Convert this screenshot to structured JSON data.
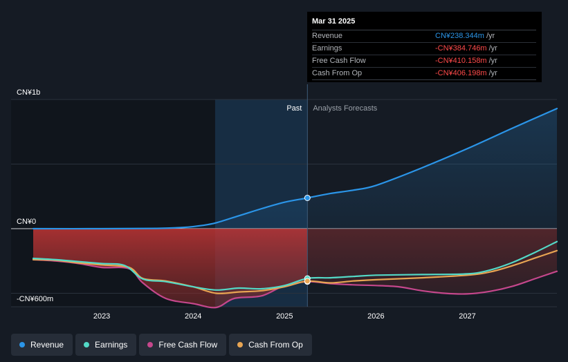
{
  "chart_data": {
    "type": "line",
    "y_labels": [
      {
        "value": 1000,
        "text": "CN¥1b"
      },
      {
        "value": 0,
        "text": "CN¥0"
      },
      {
        "value": -600,
        "text": "-CN¥600m"
      }
    ],
    "ylim": [
      -600,
      1000
    ],
    "xlim": [
      2022.25,
      2027.98
    ],
    "x_ticks": [
      {
        "value": 2023,
        "text": "2023"
      },
      {
        "value": 2024,
        "text": "2024"
      },
      {
        "value": 2025,
        "text": "2025"
      },
      {
        "value": 2026,
        "text": "2026"
      },
      {
        "value": 2027,
        "text": "2027"
      }
    ],
    "divider": {
      "x": 2025.25,
      "past_label": "Past",
      "forecast_label": "Analysts Forecasts"
    },
    "highlight_start": 2024.24,
    "series": [
      {
        "name": "Revenue",
        "color": "#2b95e8",
        "fill": true,
        "x": [
          2022.25,
          2023.0,
          2023.6,
          2023.9,
          2024.1,
          2024.25,
          2024.5,
          2024.75,
          2025.0,
          2025.25,
          2025.5,
          2025.75,
          2026.0,
          2026.5,
          2027.0,
          2027.5,
          2027.98
        ],
        "y": [
          0,
          0,
          2,
          10,
          25,
          45,
          100,
          155,
          205,
          238,
          272,
          298,
          335,
          470,
          620,
          780,
          930
        ]
      },
      {
        "name": "Earnings",
        "color": "#53d9c7",
        "x": [
          2022.25,
          2022.5,
          2022.75,
          2023.0,
          2023.25,
          2023.45,
          2023.7,
          2024.0,
          2024.25,
          2024.5,
          2024.75,
          2025.0,
          2025.25,
          2025.5,
          2025.75,
          2026.0,
          2026.5,
          2027.0,
          2027.25,
          2027.5,
          2027.75,
          2027.98
        ],
        "y": [
          -230,
          -240,
          -255,
          -270,
          -285,
          -390,
          -410,
          -450,
          -475,
          -460,
          -465,
          -440,
          -385,
          -380,
          -370,
          -360,
          -355,
          -350,
          -320,
          -260,
          -180,
          -100
        ]
      },
      {
        "name": "Free Cash Flow",
        "color": "#c5478c",
        "x": [
          2022.25,
          2022.5,
          2022.75,
          2023.0,
          2023.3,
          2023.45,
          2023.7,
          2024.0,
          2024.25,
          2024.45,
          2024.75,
          2025.0,
          2025.25,
          2025.5,
          2025.75,
          2026.0,
          2026.25,
          2026.5,
          2026.75,
          2027.0,
          2027.25,
          2027.5,
          2027.75,
          2027.98
        ],
        "y": [
          -240,
          -250,
          -270,
          -300,
          -310,
          -420,
          -540,
          -580,
          -610,
          -540,
          -520,
          -440,
          -410,
          -425,
          -435,
          -440,
          -450,
          -480,
          -500,
          -505,
          -485,
          -445,
          -385,
          -330
        ]
      },
      {
        "name": "Cash From Op",
        "color": "#e8a553",
        "x": [
          2022.25,
          2022.5,
          2022.75,
          2023.0,
          2023.3,
          2023.45,
          2023.7,
          2024.0,
          2024.25,
          2024.5,
          2024.75,
          2025.0,
          2025.25,
          2025.5,
          2025.75,
          2026.0,
          2026.5,
          2027.0,
          2027.25,
          2027.5,
          2027.75,
          2027.98
        ],
        "y": [
          -240,
          -245,
          -265,
          -280,
          -300,
          -385,
          -405,
          -450,
          -500,
          -490,
          -480,
          -450,
          -406,
          -420,
          -405,
          -395,
          -380,
          -360,
          -335,
          -285,
          -225,
          -170
        ]
      }
    ]
  },
  "tooltip": {
    "date": "Mar 31 2025",
    "rows": [
      {
        "label": "Revenue",
        "value": "CN¥238.344m",
        "unit": "/yr"
      },
      {
        "label": "Earnings",
        "value": "-CN¥384.746m",
        "unit": "/yr"
      },
      {
        "label": "Free Cash Flow",
        "value": "-CN¥410.158m",
        "unit": "/yr"
      },
      {
        "label": "Cash From Op",
        "value": "-CN¥406.198m",
        "unit": "/yr"
      }
    ]
  },
  "legend": [
    {
      "label": "Revenue",
      "color": "#2b95e8"
    },
    {
      "label": "Earnings",
      "color": "#53d9c7"
    },
    {
      "label": "Free Cash Flow",
      "color": "#c5478c"
    },
    {
      "label": "Cash From Op",
      "color": "#e8a553"
    }
  ]
}
